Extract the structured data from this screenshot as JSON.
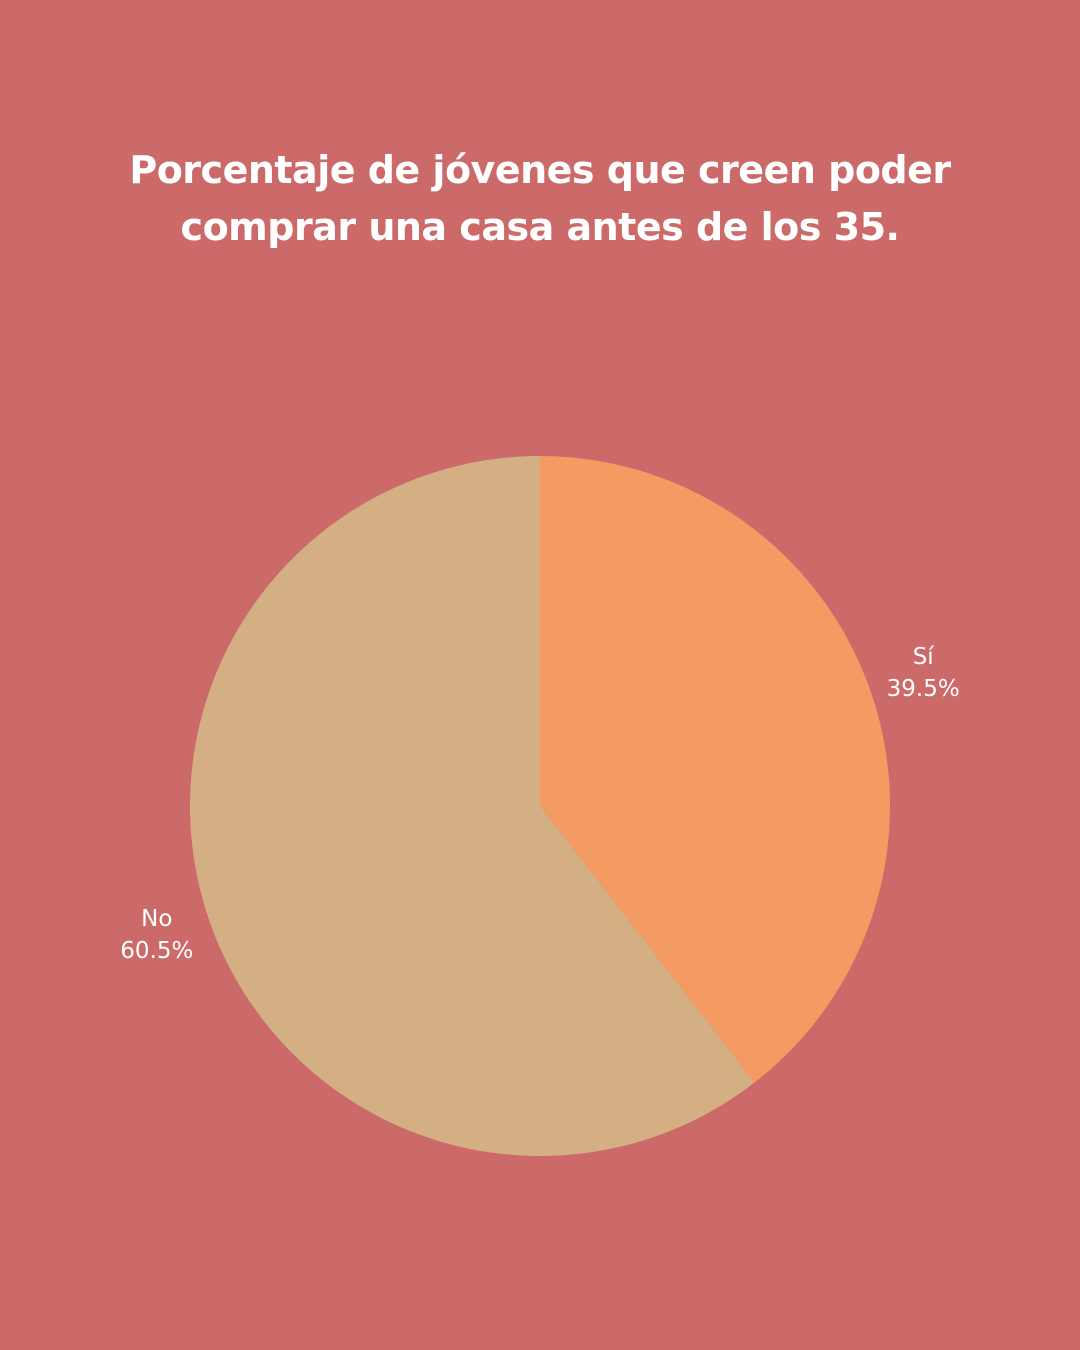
{
  "page": {
    "background_color": "#cc6a6a"
  },
  "chart_data": {
    "type": "pie",
    "title": "Porcentaje de jóvenes que creen poder comprar una casa antes de los 35.",
    "slices": [
      {
        "label": "Sí",
        "percent_label": "39.5%",
        "value": 39.5,
        "color": "#f49a63"
      },
      {
        "label": "No",
        "percent_label": "60.5%",
        "value": 60.5,
        "color": "#d5af84"
      }
    ],
    "start_angle": "12 o'clock",
    "direction": "clockwise",
    "legend": "none",
    "data_labels": "outside"
  }
}
